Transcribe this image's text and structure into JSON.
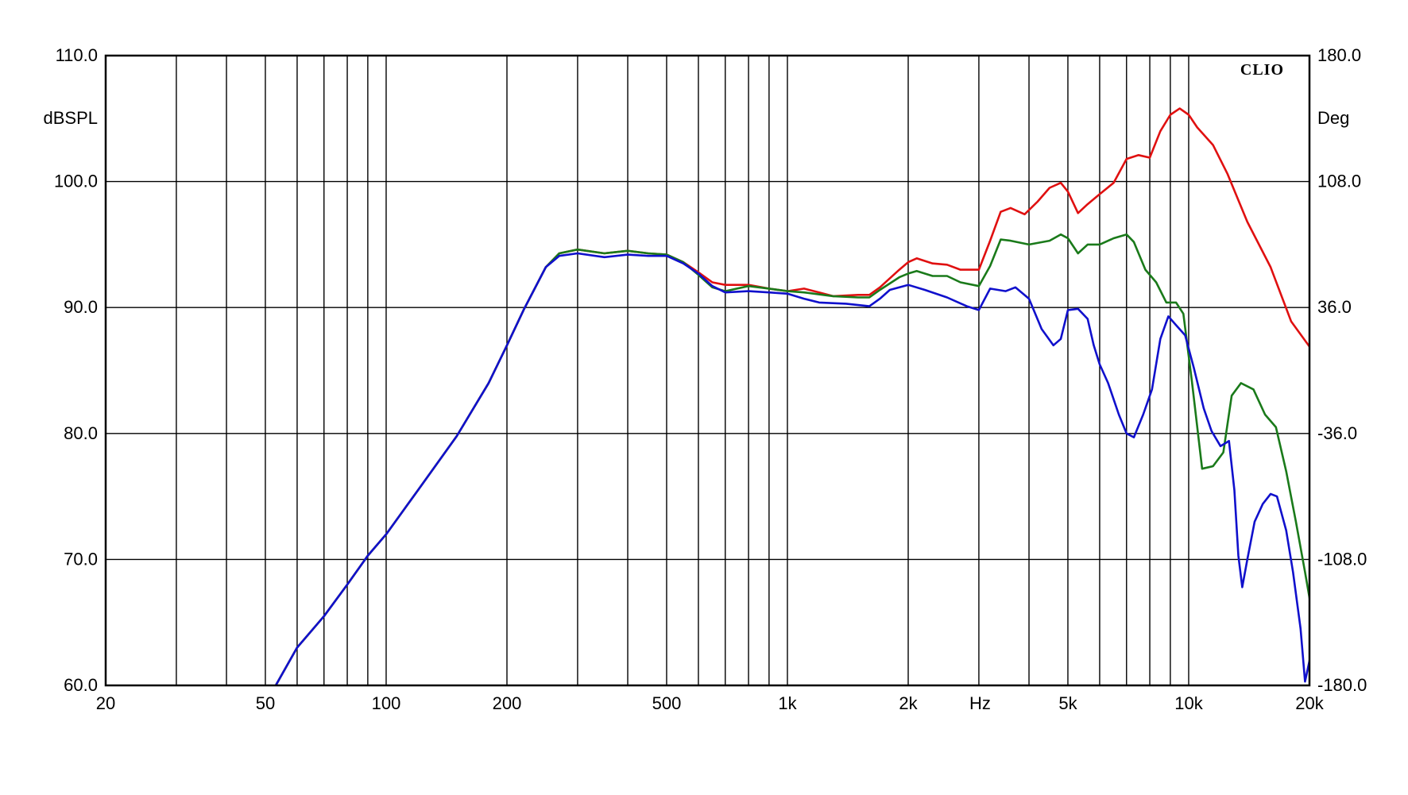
{
  "chart_data": {
    "type": "line",
    "brand": "CLIO",
    "x_unit_label": "Hz",
    "x_scale": "log",
    "xlim": [
      20,
      20000
    ],
    "ylim": [
      60,
      110
    ],
    "ylim_right": [
      -180,
      180
    ],
    "ylabel": "dBSPL",
    "ylabel_right": "Deg",
    "grid": true,
    "x_ticks": [
      {
        "value": 20,
        "label": "20"
      },
      {
        "value": 50,
        "label": "50"
      },
      {
        "value": 100,
        "label": "100"
      },
      {
        "value": 200,
        "label": "200"
      },
      {
        "value": 500,
        "label": "500"
      },
      {
        "value": 1000,
        "label": "1k"
      },
      {
        "value": 2000,
        "label": "2k"
      },
      {
        "value": 5000,
        "label": "5k"
      },
      {
        "value": 10000,
        "label": "10k"
      },
      {
        "value": 20000,
        "label": "20k"
      }
    ],
    "y_ticks": [
      {
        "value": 60,
        "label": "60.0"
      },
      {
        "value": 70,
        "label": "70.0"
      },
      {
        "value": 80,
        "label": "80.0"
      },
      {
        "value": 90,
        "label": "90.0"
      },
      {
        "value": 100,
        "label": "100.0"
      },
      {
        "value": 110,
        "label": "110.0"
      }
    ],
    "y_ticks_right": [
      {
        "value": -180,
        "label": "-180.0"
      },
      {
        "value": -108,
        "label": "-108.0"
      },
      {
        "value": -36,
        "label": "-36.0"
      },
      {
        "value": 36,
        "label": "36.0"
      },
      {
        "value": 108,
        "label": "108.0"
      },
      {
        "value": 180,
        "label": "180.0"
      }
    ],
    "series": [
      {
        "color": "#e01010",
        "points": [
          [
            52,
            59.5
          ],
          [
            60,
            63
          ],
          [
            70,
            65.5
          ],
          [
            80,
            68
          ],
          [
            90,
            70.3
          ],
          [
            100,
            72
          ],
          [
            120,
            75.5
          ],
          [
            150,
            79.8
          ],
          [
            180,
            84
          ],
          [
            200,
            87
          ],
          [
            220,
            89.8
          ],
          [
            250,
            93.2
          ],
          [
            270,
            94.3
          ],
          [
            300,
            94.6
          ],
          [
            350,
            94.3
          ],
          [
            400,
            94.5
          ],
          [
            450,
            94.3
          ],
          [
            500,
            94.2
          ],
          [
            550,
            93.6
          ],
          [
            600,
            92.8
          ],
          [
            650,
            92
          ],
          [
            700,
            91.8
          ],
          [
            800,
            91.8
          ],
          [
            900,
            91.5
          ],
          [
            1000,
            91.3
          ],
          [
            1100,
            91.5
          ],
          [
            1200,
            91.2
          ],
          [
            1300,
            90.9
          ],
          [
            1500,
            91
          ],
          [
            1600,
            91
          ],
          [
            1700,
            91.6
          ],
          [
            1900,
            93
          ],
          [
            2000,
            93.6
          ],
          [
            2100,
            93.9
          ],
          [
            2300,
            93.5
          ],
          [
            2500,
            93.4
          ],
          [
            2700,
            93
          ],
          [
            3000,
            93
          ],
          [
            3200,
            95.3
          ],
          [
            3400,
            97.6
          ],
          [
            3600,
            97.9
          ],
          [
            3900,
            97.4
          ],
          [
            4200,
            98.4
          ],
          [
            4500,
            99.5
          ],
          [
            4800,
            99.9
          ],
          [
            5000,
            99.2
          ],
          [
            5300,
            97.5
          ],
          [
            5600,
            98.2
          ],
          [
            6000,
            99
          ],
          [
            6500,
            99.9
          ],
          [
            7000,
            101.8
          ],
          [
            7500,
            102.1
          ],
          [
            8000,
            101.9
          ],
          [
            8500,
            104
          ],
          [
            9000,
            105.3
          ],
          [
            9500,
            105.8
          ],
          [
            10000,
            105.3
          ],
          [
            10500,
            104.3
          ],
          [
            11500,
            102.9
          ],
          [
            12500,
            100.6
          ],
          [
            14000,
            96.8
          ],
          [
            16000,
            93.2
          ],
          [
            18000,
            88.9
          ],
          [
            20000,
            86.9
          ],
          [
            22000,
            86.8
          ]
        ]
      },
      {
        "color": "#1a7a1a",
        "points": [
          [
            52,
            59.5
          ],
          [
            60,
            63
          ],
          [
            70,
            65.5
          ],
          [
            80,
            68
          ],
          [
            90,
            70.3
          ],
          [
            100,
            72
          ],
          [
            120,
            75.5
          ],
          [
            150,
            79.8
          ],
          [
            180,
            84
          ],
          [
            200,
            87
          ],
          [
            220,
            89.8
          ],
          [
            250,
            93.2
          ],
          [
            270,
            94.3
          ],
          [
            300,
            94.6
          ],
          [
            350,
            94.3
          ],
          [
            400,
            94.5
          ],
          [
            450,
            94.3
          ],
          [
            500,
            94.2
          ],
          [
            550,
            93.6
          ],
          [
            600,
            92.6
          ],
          [
            650,
            91.6
          ],
          [
            700,
            91.3
          ],
          [
            800,
            91.7
          ],
          [
            900,
            91.5
          ],
          [
            1000,
            91.3
          ],
          [
            1100,
            91.2
          ],
          [
            1300,
            90.9
          ],
          [
            1500,
            90.8
          ],
          [
            1600,
            90.8
          ],
          [
            1700,
            91.4
          ],
          [
            1900,
            92.4
          ],
          [
            2000,
            92.7
          ],
          [
            2100,
            92.9
          ],
          [
            2300,
            92.5
          ],
          [
            2500,
            92.5
          ],
          [
            2700,
            92
          ],
          [
            3000,
            91.7
          ],
          [
            3200,
            93.3
          ],
          [
            3400,
            95.4
          ],
          [
            3600,
            95.3
          ],
          [
            4000,
            95
          ],
          [
            4500,
            95.3
          ],
          [
            4800,
            95.8
          ],
          [
            5000,
            95.5
          ],
          [
            5300,
            94.3
          ],
          [
            5600,
            95
          ],
          [
            6000,
            95
          ],
          [
            6500,
            95.5
          ],
          [
            7000,
            95.8
          ],
          [
            7300,
            95.2
          ],
          [
            7800,
            93
          ],
          [
            8300,
            92
          ],
          [
            8800,
            90.4
          ],
          [
            9300,
            90.4
          ],
          [
            9700,
            89.5
          ],
          [
            10200,
            84
          ],
          [
            10800,
            77.2
          ],
          [
            11500,
            77.4
          ],
          [
            12200,
            78.5
          ],
          [
            12800,
            83
          ],
          [
            13500,
            84
          ],
          [
            14500,
            83.5
          ],
          [
            15500,
            81.5
          ],
          [
            16500,
            80.5
          ],
          [
            17500,
            77
          ],
          [
            18500,
            73
          ],
          [
            19500,
            69
          ],
          [
            20500,
            65
          ],
          [
            21000,
            60.2
          ],
          [
            22000,
            63.5
          ]
        ]
      },
      {
        "color": "#1010cc",
        "points": [
          [
            52,
            59.5
          ],
          [
            60,
            63
          ],
          [
            70,
            65.5
          ],
          [
            80,
            68
          ],
          [
            90,
            70.3
          ],
          [
            100,
            72
          ],
          [
            120,
            75.5
          ],
          [
            150,
            79.8
          ],
          [
            180,
            84
          ],
          [
            200,
            87
          ],
          [
            220,
            89.8
          ],
          [
            250,
            93.2
          ],
          [
            270,
            94.1
          ],
          [
            300,
            94.3
          ],
          [
            350,
            94
          ],
          [
            400,
            94.2
          ],
          [
            450,
            94.1
          ],
          [
            500,
            94.1
          ],
          [
            550,
            93.5
          ],
          [
            600,
            92.7
          ],
          [
            650,
            91.7
          ],
          [
            700,
            91.2
          ],
          [
            800,
            91.3
          ],
          [
            900,
            91.2
          ],
          [
            1000,
            91.1
          ],
          [
            1100,
            90.7
          ],
          [
            1200,
            90.4
          ],
          [
            1400,
            90.3
          ],
          [
            1600,
            90.1
          ],
          [
            1700,
            90.7
          ],
          [
            1800,
            91.4
          ],
          [
            2000,
            91.8
          ],
          [
            2200,
            91.4
          ],
          [
            2500,
            90.8
          ],
          [
            2800,
            90.1
          ],
          [
            3000,
            89.8
          ],
          [
            3200,
            91.5
          ],
          [
            3500,
            91.3
          ],
          [
            3700,
            91.6
          ],
          [
            4000,
            90.7
          ],
          [
            4300,
            88.3
          ],
          [
            4600,
            87
          ],
          [
            4800,
            87.5
          ],
          [
            5000,
            89.8
          ],
          [
            5300,
            89.9
          ],
          [
            5600,
            89.1
          ],
          [
            5800,
            87
          ],
          [
            6000,
            85.5
          ],
          [
            6300,
            84
          ],
          [
            6700,
            81.5
          ],
          [
            7000,
            80
          ],
          [
            7300,
            79.7
          ],
          [
            7700,
            81.5
          ],
          [
            8100,
            83.5
          ],
          [
            8500,
            87.5
          ],
          [
            8900,
            89.3
          ],
          [
            9300,
            88.6
          ],
          [
            9800,
            87.8
          ],
          [
            10300,
            85.2
          ],
          [
            10900,
            82
          ],
          [
            11400,
            80.2
          ],
          [
            12000,
            79
          ],
          [
            12600,
            79.4
          ],
          [
            13000,
            75.5
          ],
          [
            13300,
            70.3
          ],
          [
            13600,
            67.8
          ],
          [
            14000,
            70
          ],
          [
            14600,
            73
          ],
          [
            15300,
            74.4
          ],
          [
            16000,
            75.2
          ],
          [
            16600,
            75
          ],
          [
            17500,
            72.3
          ],
          [
            18200,
            69
          ],
          [
            19000,
            64.5
          ],
          [
            19500,
            60.3
          ],
          [
            20200,
            62.6
          ],
          [
            21000,
            62.5
          ],
          [
            22000,
            66.3
          ]
        ]
      }
    ]
  }
}
